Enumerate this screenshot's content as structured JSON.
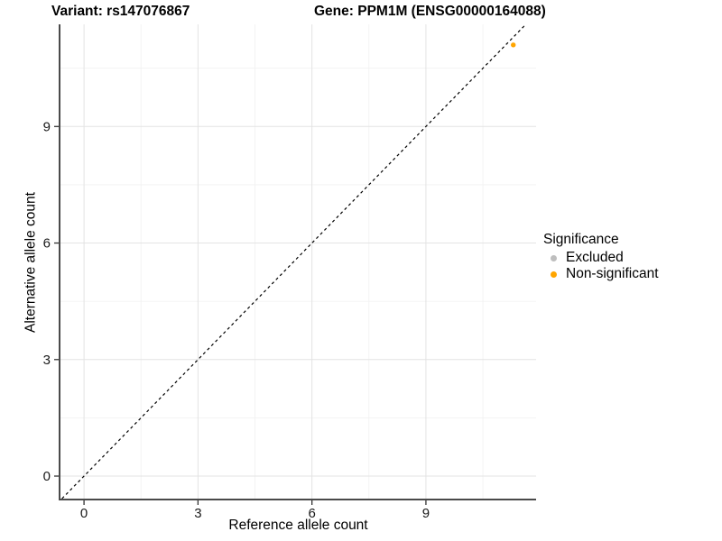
{
  "chart_data": {
    "type": "scatter",
    "titles": {
      "left": "Variant: rs147076867",
      "right": "Gene: PPM1M (ENSG00000164088)"
    },
    "xlabel": "Reference allele count",
    "ylabel": "Alternative allele count",
    "xlim": [
      -0.62,
      11.9
    ],
    "ylim": [
      -0.58,
      11.63
    ],
    "xticks": [
      0,
      3,
      6,
      9
    ],
    "yticks": [
      0,
      3,
      6,
      9
    ],
    "minor_xticks": [
      1.5,
      4.5,
      7.5,
      10.5
    ],
    "minor_yticks": [
      1.5,
      4.5,
      7.5,
      10.5
    ],
    "grid": {
      "major": true,
      "minor": true
    },
    "identity_line": {
      "style": "dashed",
      "equation": "y = x",
      "color": "#000000"
    },
    "series": [
      {
        "name": "Excluded",
        "color": "#BEBEBE",
        "points": []
      },
      {
        "name": "Non-significant",
        "color": "#FFA500",
        "points": [
          {
            "x": 11.3,
            "y": 11.1
          }
        ]
      }
    ],
    "legend": {
      "title": "Significance",
      "position": "right",
      "entries": [
        {
          "label": "Excluded",
          "color": "#BEBEBE"
        },
        {
          "label": "Non-significant",
          "color": "#FFA500"
        }
      ]
    }
  },
  "style_colors": {
    "background": "#FFFFFF",
    "grid_major": "#E3E3E3",
    "grid_minor": "#F2F2F2",
    "axis_line": "#4A4A4A",
    "tick_mark": "#333333",
    "tick_label": "#1A1A1A"
  }
}
